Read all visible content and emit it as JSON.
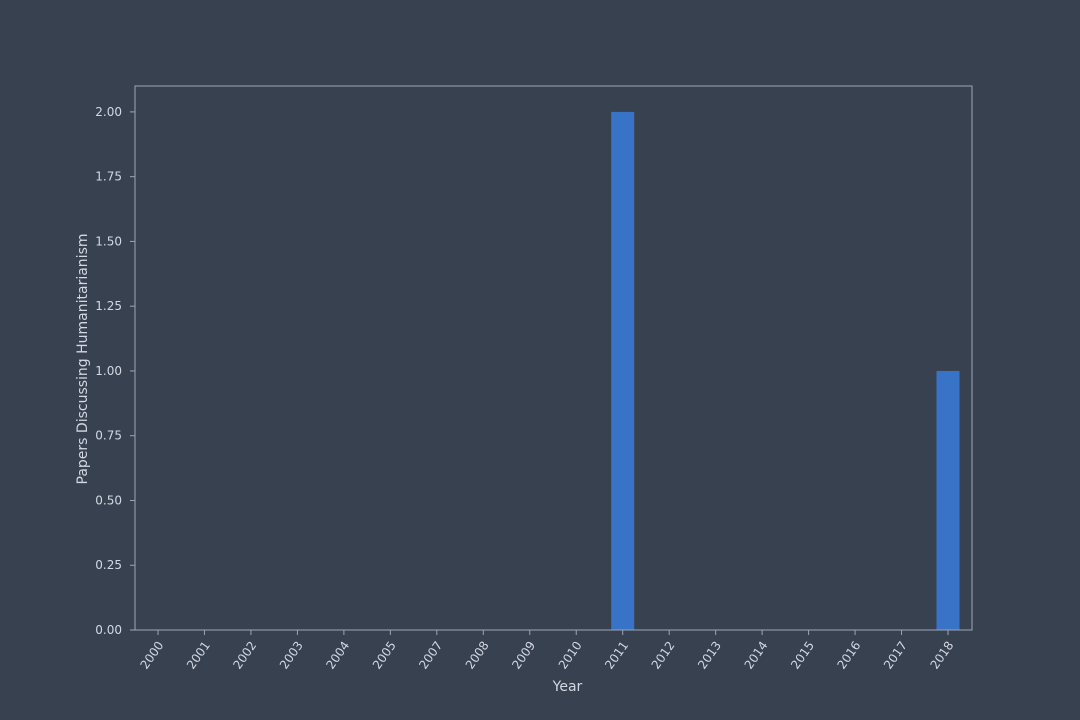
{
  "chart_data": {
    "type": "bar",
    "title": "",
    "xlabel": "Year",
    "ylabel": "Papers Discussing Humanitarianism",
    "categories": [
      "2000",
      "2001",
      "2002",
      "2003",
      "2004",
      "2005",
      "2007",
      "2008",
      "2009",
      "2010",
      "2011",
      "2012",
      "2013",
      "2014",
      "2015",
      "2016",
      "2017",
      "2018"
    ],
    "values": [
      0,
      0,
      0,
      0,
      0,
      0,
      0,
      0,
      0,
      0,
      2,
      0,
      0,
      0,
      0,
      0,
      0,
      1
    ],
    "ylim": [
      0,
      2.1
    ],
    "yticks": [
      "0.00",
      "0.25",
      "0.50",
      "0.75",
      "1.00",
      "1.25",
      "1.50",
      "1.75",
      "2.00"
    ],
    "grid": false,
    "colors": {
      "background": "#384150",
      "bar": "#3873c8",
      "axis": "#9aa6b8",
      "text": "#d3d8e2"
    }
  }
}
